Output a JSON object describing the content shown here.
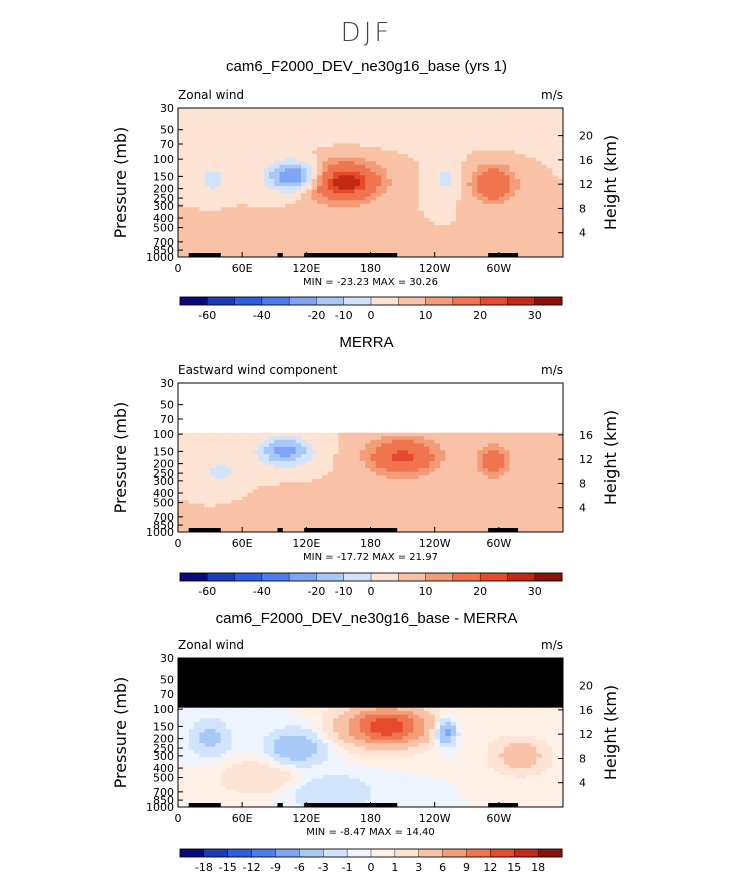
{
  "figure": {
    "title": "DJF"
  },
  "chart_data": [
    {
      "type": "heatmap",
      "title": "cam6_F2000_DEV_ne30g16_base (yrs 1)",
      "left_label": "Zonal wind",
      "right_label": "m/s",
      "ylabel": "Pressure (mb)",
      "ylabel_right": "Height (km)",
      "y_ticks": [
        "30",
        "50",
        "70",
        "100",
        "150",
        "200",
        "250",
        "300",
        "400",
        "500",
        "700",
        "850",
        "1000"
      ],
      "height_ticks": [
        "20",
        "16",
        "12",
        "8",
        "4"
      ],
      "x_ticks": [
        "0",
        "60E",
        "120E",
        "180",
        "120W",
        "60W"
      ],
      "min_max_text": "MIN = -23.23   MAX =  30.26",
      "colorbar_labels": [
        "-60",
        "-40",
        "-20",
        "-10",
        "0",
        "10",
        "20",
        "30"
      ],
      "colorbar_colors": [
        "#0a0a7a",
        "#1d3bb8",
        "#2f5ee0",
        "#4c7cf0",
        "#7fa5f4",
        "#a8c8f8",
        "#d2e4fb",
        "#fde3d3",
        "#f9c2a6",
        "#f49b77",
        "#ef744f",
        "#e44a2b",
        "#c22a16",
        "#8b1208"
      ],
      "features": [
        {
          "name": "westerly jet center",
          "lon": 155,
          "p": 170,
          "max": 30.26
        },
        {
          "name": "west atlantic jet",
          "lon": 295,
          "p": 180,
          "max": 20
        },
        {
          "name": "easterly center",
          "lon": 110,
          "p": 150,
          "min": -23.23
        }
      ]
    },
    {
      "type": "heatmap",
      "title": "MERRA",
      "left_label": "Eastward wind component",
      "right_label": "m/s",
      "ylabel": "Pressure (mb)",
      "ylabel_right": "Height (km)",
      "y_ticks": [
        "30",
        "50",
        "70",
        "100",
        "150",
        "200",
        "250",
        "300",
        "400",
        "500",
        "700",
        "850",
        "1000"
      ],
      "height_ticks": [
        "16",
        "12",
        "8",
        "4"
      ],
      "x_ticks": [
        "0",
        "60E",
        "120E",
        "180",
        "120W",
        "60W"
      ],
      "min_max_text": "MIN = -17.72   MAX =  21.97",
      "colorbar_labels": [
        "-60",
        "-40",
        "-20",
        "-10",
        "0",
        "10",
        "20",
        "30"
      ],
      "colorbar_colors": [
        "#0a0a7a",
        "#1d3bb8",
        "#2f5ee0",
        "#4c7cf0",
        "#7fa5f4",
        "#a8c8f8",
        "#d2e4fb",
        "#fde3d3",
        "#f9c2a6",
        "#f49b77",
        "#ef744f",
        "#e44a2b",
        "#c22a16",
        "#8b1208"
      ],
      "data_top_pressure": 100,
      "features": [
        {
          "name": "westerly jet center",
          "lon": 210,
          "p": 170,
          "max": 21.97
        },
        {
          "name": "west atlantic jet",
          "lon": 295,
          "p": 190,
          "max": 15
        },
        {
          "name": "easterly region",
          "lon": 100,
          "p": 150,
          "min": -17.72
        }
      ]
    },
    {
      "type": "heatmap",
      "title": "cam6_F2000_DEV_ne30g16_base - MERRA",
      "left_label": "Zonal wind",
      "right_label": "m/s",
      "ylabel": "Pressure (mb)",
      "ylabel_right": "Height (km)",
      "y_ticks": [
        "30",
        "50",
        "70",
        "100",
        "150",
        "200",
        "250",
        "300",
        "400",
        "500",
        "700",
        "850",
        "1000"
      ],
      "height_ticks": [
        "20",
        "16",
        "12",
        "8",
        "4"
      ],
      "x_ticks": [
        "0",
        "60E",
        "120E",
        "180",
        "120W",
        "60W"
      ],
      "min_max_text": "MIN =  -8.47   MAX =  14.40",
      "colorbar_labels": [
        "-18",
        "-15",
        "-12",
        "-9",
        "-6",
        "-3",
        "-1",
        "0",
        "1",
        "3",
        "6",
        "9",
        "12",
        "15",
        "18"
      ],
      "colorbar_colors": [
        "#0a0a7a",
        "#1d3bb8",
        "#2f5ee0",
        "#4c7cf0",
        "#7fa5f4",
        "#a8c8f8",
        "#d2e4fb",
        "#eef4fd",
        "#fef0e6",
        "#fde3d3",
        "#f9c2a6",
        "#f49b77",
        "#ef744f",
        "#e44a2b",
        "#c22a16",
        "#8b1208"
      ],
      "masked_above_pressure": 100,
      "features": [
        {
          "name": "positive difference center",
          "lon": 195,
          "p": 150,
          "max": 14.4
        },
        {
          "name": "negative difference center",
          "lon": 250,
          "p": 170,
          "min": -8.47
        }
      ]
    }
  ]
}
